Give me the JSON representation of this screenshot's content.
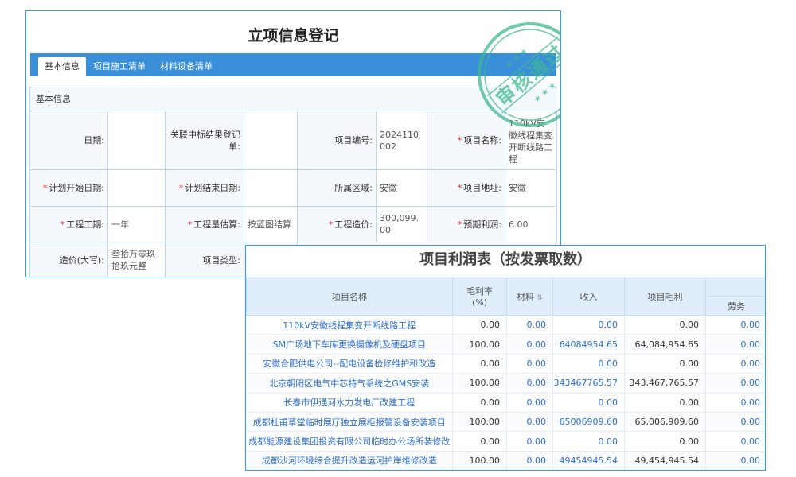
{
  "registration": {
    "title": "立项信息登记",
    "tabs": [
      "基本信息",
      "项目施工清单",
      "材料设备清单"
    ],
    "section_title": "基本信息",
    "fields": [
      {
        "label": "日期:",
        "value": "",
        "required": false
      },
      {
        "label": "关联中标结果登记单:",
        "value": "",
        "required": false
      },
      {
        "label": "项目编号:",
        "value": "2024110002",
        "required": false
      },
      {
        "label": "项目名称:",
        "value": "110kV安徽线程集变开断线路工程",
        "required": true
      },
      {
        "label": "计划开始日期:",
        "value": "",
        "required": true
      },
      {
        "label": "计划结束日期:",
        "value": "",
        "required": true
      },
      {
        "label": "所属区域:",
        "value": "安徽",
        "required": false
      },
      {
        "label": "项目地址:",
        "value": "安徽",
        "required": true
      },
      {
        "label": "工程工期:",
        "value": "一年",
        "required": true
      },
      {
        "label": "工程量估算:",
        "value": "按蓝图结算",
        "required": true
      },
      {
        "label": "工程造价:",
        "value": "300,099.00",
        "required": true
      },
      {
        "label": "预期利润:",
        "value": "6.00",
        "required": true
      },
      {
        "label": "造价(大写):",
        "value": "叁拾万零玖拾玖元整",
        "required": false
      },
      {
        "label": "项目类型:",
        "value": "",
        "required": false
      }
    ],
    "stamp": {
      "text": "审核通过",
      "color": "#3fb891"
    }
  },
  "profit_table": {
    "title": "项目利润表（按发票取数）",
    "headers": {
      "name": "项目名称",
      "margin_rate": "毛利率(%)",
      "material": "材料",
      "income": "收入",
      "gross_profit": "项目毛利",
      "labor": "劳务"
    },
    "rows": [
      {
        "name": "110kV安徽线程集变开断线路工程",
        "rate": "0.00",
        "material": "0.00",
        "income": "0.00",
        "profit": "0.00",
        "labor": "0.00"
      },
      {
        "name": "SM广场地下车库更换摄像机及硬盘项目",
        "rate": "100.00",
        "material": "0.00",
        "income": "64084954.65",
        "profit": "64,084,954.65",
        "labor": "0.00"
      },
      {
        "name": "安徽合肥供电公司--配电设备检修维护和改造",
        "rate": "0.00",
        "material": "0.00",
        "income": "0.00",
        "profit": "0.00",
        "labor": "0.00"
      },
      {
        "name": "北京朝阳区电气中芯特气系统之GMS安装",
        "rate": "100.00",
        "material": "0.00",
        "income": "343467765.57",
        "profit": "343,467,765.57",
        "labor": "0.00"
      },
      {
        "name": "长春市伊通河水力发电厂改建工程",
        "rate": "0.00",
        "material": "0.00",
        "income": "0.00",
        "profit": "0.00",
        "labor": "0.00"
      },
      {
        "name": "成都杜甫草堂临时展厅独立展柜报警设备安装项目",
        "rate": "100.00",
        "material": "0.00",
        "income": "65006909.60",
        "profit": "65,006,909.60",
        "labor": "0.00"
      },
      {
        "name": "成都能源建设集团投资有限公司临时办公场所装修改",
        "rate": "0.00",
        "material": "0.00",
        "income": "0.00",
        "profit": "0.00",
        "labor": "0.00"
      },
      {
        "name": "成都沙河环境综合提升改造运河护岸维修改造",
        "rate": "100.00",
        "material": "0.00",
        "income": "49454945.54",
        "profit": "49,454,945.54",
        "labor": "0.00"
      }
    ]
  }
}
